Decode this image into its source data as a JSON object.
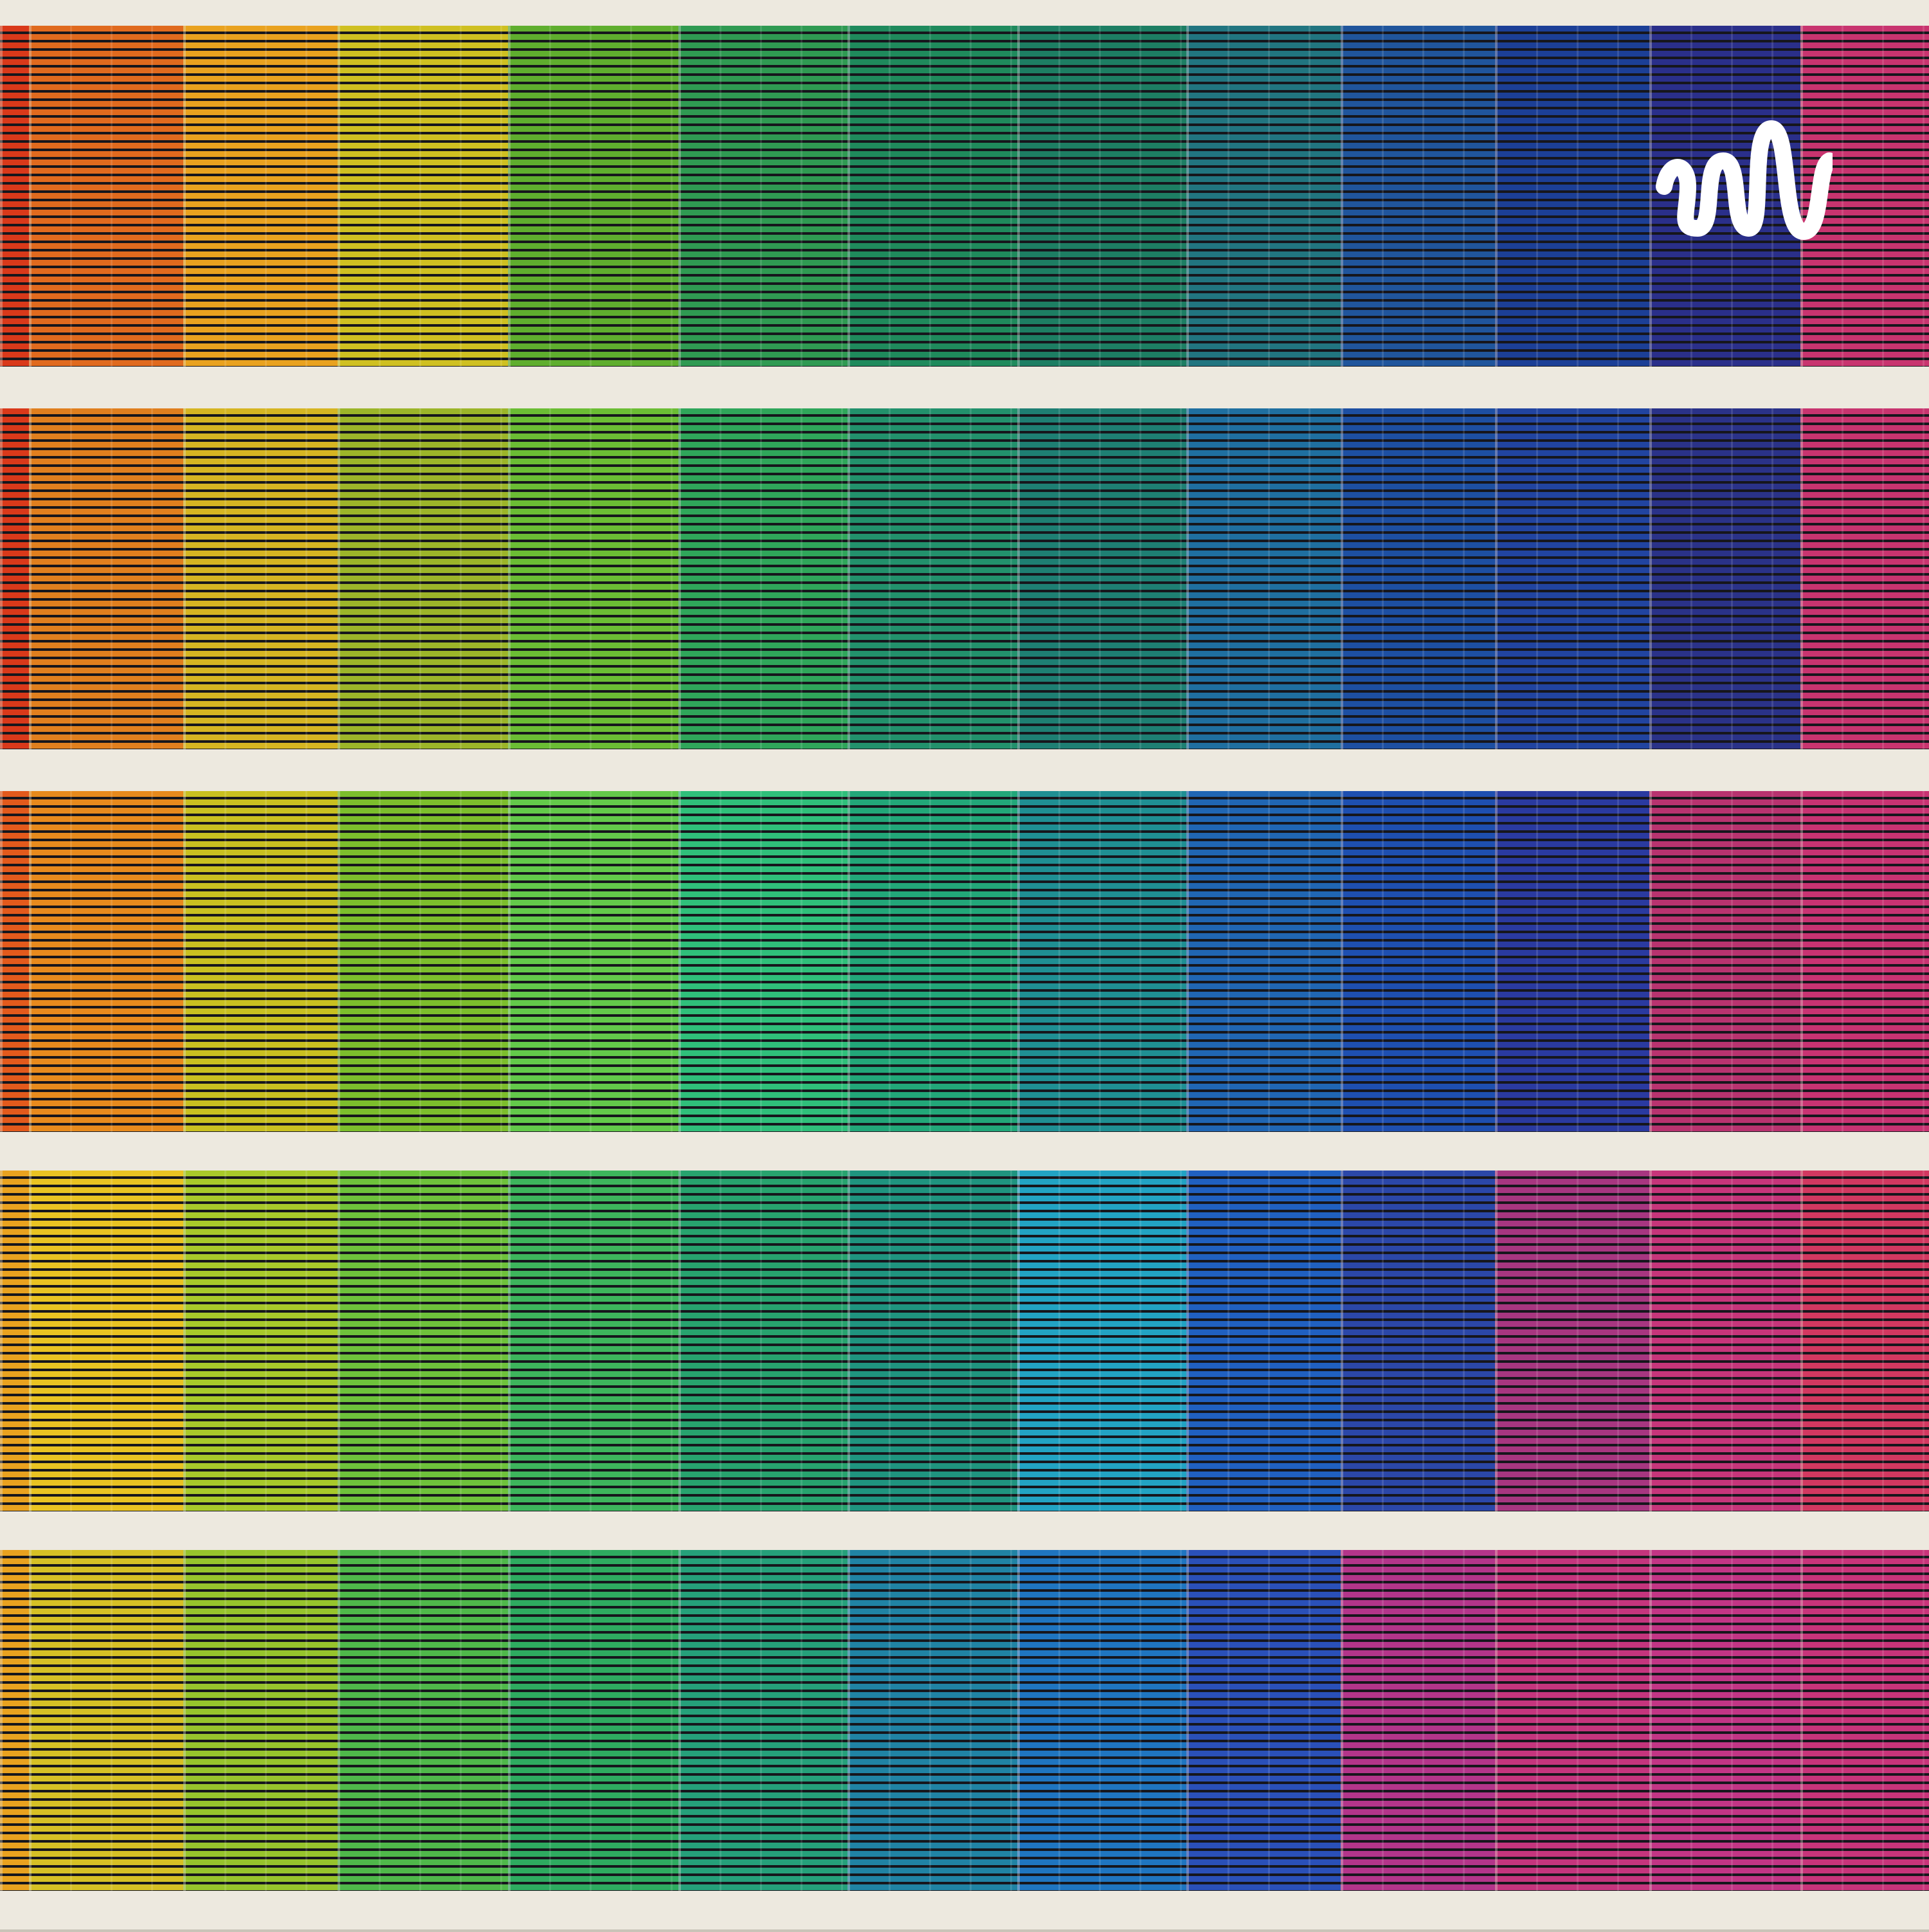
{
  "scene": {
    "description_colors": {
      "slab": "#ede9df",
      "logo": "#ffffff"
    },
    "floors": [
      [
        "#d9391a",
        "#e06a1e",
        "#e9a21f",
        "#cfc021",
        "#5fae2e",
        "#2f9a52",
        "#1f8a5c",
        "#1d7e63",
        "#217580",
        "#20559c",
        "#1c3f96",
        "#2a2f8a",
        "#c8346f",
        "#a8305f"
      ],
      [
        "#d9391a",
        "#e07f1e",
        "#d6b522",
        "#9cb529",
        "#6bbd34",
        "#2fa65a",
        "#22916c",
        "#1e7f73",
        "#1f6fa0",
        "#1d4fa2",
        "#2144a0",
        "#2a3288",
        "#c8346f",
        "#b3305a"
      ],
      [
        "#e35a1c",
        "#e78a1d",
        "#c9c020",
        "#7cbe2c",
        "#63c94a",
        "#2fbf7a",
        "#22a779",
        "#1f8f93",
        "#2066b3",
        "#1e4fb0",
        "#2a3aa0",
        "#b8336f",
        "#c83372",
        "#c8336a"
      ],
      [
        "#e9a21f",
        "#e9c322",
        "#a8c92a",
        "#6ec23b",
        "#3db55c",
        "#27a36e",
        "#1f947f",
        "#22a3c3",
        "#2060c0",
        "#2b47a8",
        "#a73680",
        "#c6357a",
        "#d23860",
        "#c8335a"
      ],
      [
        "#e9a21f",
        "#d6c025",
        "#97c42c",
        "#4fb84a",
        "#2eab60",
        "#25a07a",
        "#2083a4",
        "#1f75c0",
        "#2a50b8",
        "#b3358a",
        "#c5357d",
        "#c23585",
        "#c8347a",
        "#b8306a"
      ]
    ]
  }
}
